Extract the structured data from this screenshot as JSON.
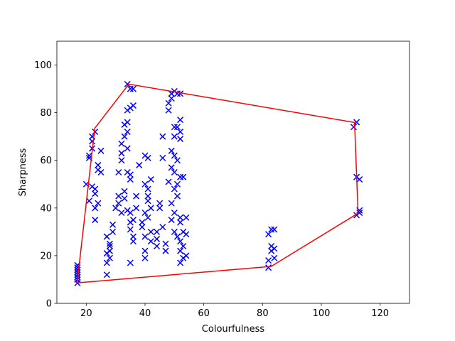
{
  "chart_data": {
    "type": "scatter",
    "xlabel": "Colourfulness",
    "ylabel": "Sharpness",
    "xlim": [
      10,
      130
    ],
    "ylim": [
      0,
      110
    ],
    "xticks": [
      20,
      40,
      60,
      80,
      100,
      120
    ],
    "yticks": [
      0,
      20,
      40,
      60,
      80,
      100
    ],
    "series": [
      {
        "color": "#0000ff",
        "marker": "x",
        "x": [
          17,
          17,
          17,
          17,
          17,
          17,
          17,
          17,
          17,
          17,
          20,
          21,
          21,
          22,
          22,
          22,
          23,
          23,
          23,
          23,
          23,
          24,
          24,
          25,
          25,
          24,
          22,
          21,
          27,
          27,
          28,
          28,
          28,
          27,
          29,
          29,
          28,
          27,
          30,
          31,
          31,
          32,
          32,
          32,
          33,
          33,
          34,
          34,
          34,
          34,
          33,
          33,
          35,
          35,
          35,
          36,
          36,
          35,
          34,
          35,
          36,
          35,
          34,
          36,
          32,
          31,
          34,
          36,
          37,
          37,
          35,
          35,
          38,
          39,
          39,
          40,
          40,
          40,
          41,
          40,
          41,
          41,
          42,
          41,
          42,
          40,
          41,
          42,
          40,
          42,
          44,
          44,
          44,
          45,
          45,
          46,
          46,
          46,
          47,
          47,
          48,
          48,
          49,
          49,
          50,
          51,
          52,
          50,
          51,
          50,
          52,
          52,
          52,
          49,
          50,
          51,
          49,
          50,
          52,
          53,
          50,
          51,
          49,
          50,
          52,
          52,
          53,
          51,
          52,
          53,
          52,
          53,
          52,
          54,
          54,
          54,
          50,
          49,
          51,
          48,
          82,
          82,
          82,
          83,
          84,
          83,
          84,
          83,
          84,
          111,
          112,
          112,
          113,
          112,
          113,
          113
        ],
        "y": [
          8.5,
          10,
          11,
          12,
          13,
          14,
          15,
          16,
          13,
          11,
          50,
          43,
          61,
          65,
          68,
          70,
          72,
          48,
          46,
          40,
          35,
          58,
          56,
          64,
          55,
          42,
          49,
          62,
          12,
          17,
          19,
          22,
          25,
          28,
          30,
          33,
          24,
          21,
          40,
          45,
          55,
          60,
          63,
          67,
          75,
          70,
          76,
          72,
          65,
          55,
          47,
          44,
          38,
          34,
          31,
          28,
          26,
          17,
          92,
          90,
          90,
          82,
          81,
          83,
          38,
          42,
          39,
          35,
          45,
          40,
          52,
          54,
          58,
          34,
          32,
          22,
          19,
          62,
          61,
          50,
          48,
          45,
          52,
          43,
          40,
          38,
          36,
          30,
          28,
          26,
          24,
          27,
          30,
          40,
          42,
          70,
          61,
          32,
          22,
          25,
          81,
          84,
          86,
          88,
          89,
          88,
          88,
          74,
          74,
          70,
          77,
          72,
          69,
          64,
          62,
          60,
          57,
          55,
          53,
          53,
          48,
          45,
          42,
          38,
          36,
          34,
          30,
          28,
          26,
          24,
          22,
          19,
          17,
          20,
          29,
          36,
          30,
          35,
          50,
          51,
          15,
          18,
          29,
          31,
          31,
          24,
          23,
          22,
          19,
          74,
          76,
          53,
          52,
          37,
          38,
          39
        ]
      },
      {
        "color": "#ff0000",
        "marker": "line",
        "x": [
          16.9,
          22.9,
          34.5,
          111.3,
          112.5,
          82.9,
          16.9
        ],
        "y": [
          8.6,
          73.5,
          92,
          75.9,
          37.8,
          15.5,
          8.6
        ]
      }
    ]
  }
}
